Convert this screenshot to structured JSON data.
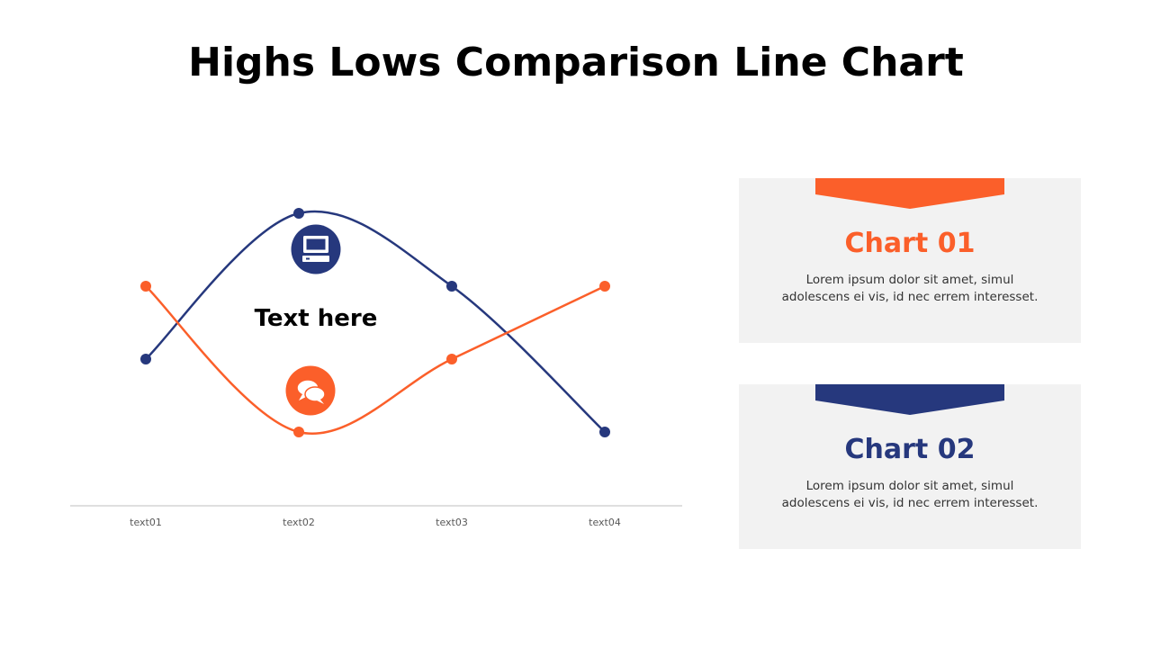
{
  "title": "Highs Lows Comparison Line Chart",
  "colors": {
    "navy": "#26387d",
    "orange": "#fb5f2a",
    "panel_bg": "#f2f2f2",
    "axis": "#bfbfbf"
  },
  "chart_data": {
    "type": "line",
    "categories": [
      "text01",
      "text02",
      "text03",
      "text04"
    ],
    "series": [
      {
        "color": "#26387d",
        "values": [
          2,
          4,
          3,
          1
        ]
      },
      {
        "color": "#fb5f2a",
        "values": [
          3,
          1,
          2,
          3
        ]
      }
    ],
    "ylim": [
      1,
      4
    ],
    "smooth": true,
    "grid": false,
    "annotation": "Text here",
    "icons": [
      "computer-icon",
      "speech-bubble-icon"
    ]
  },
  "panels": [
    {
      "title": "Chart 01",
      "color": "#fb5f2a",
      "body": "Lorem ipsum dolor sit amet, simul adolescens ei vis, id nec errem interesset."
    },
    {
      "title": "Chart 02",
      "color": "#26387d",
      "body": "Lorem ipsum dolor sit amet, simul adolescens ei vis, id nec errem interesset."
    }
  ]
}
